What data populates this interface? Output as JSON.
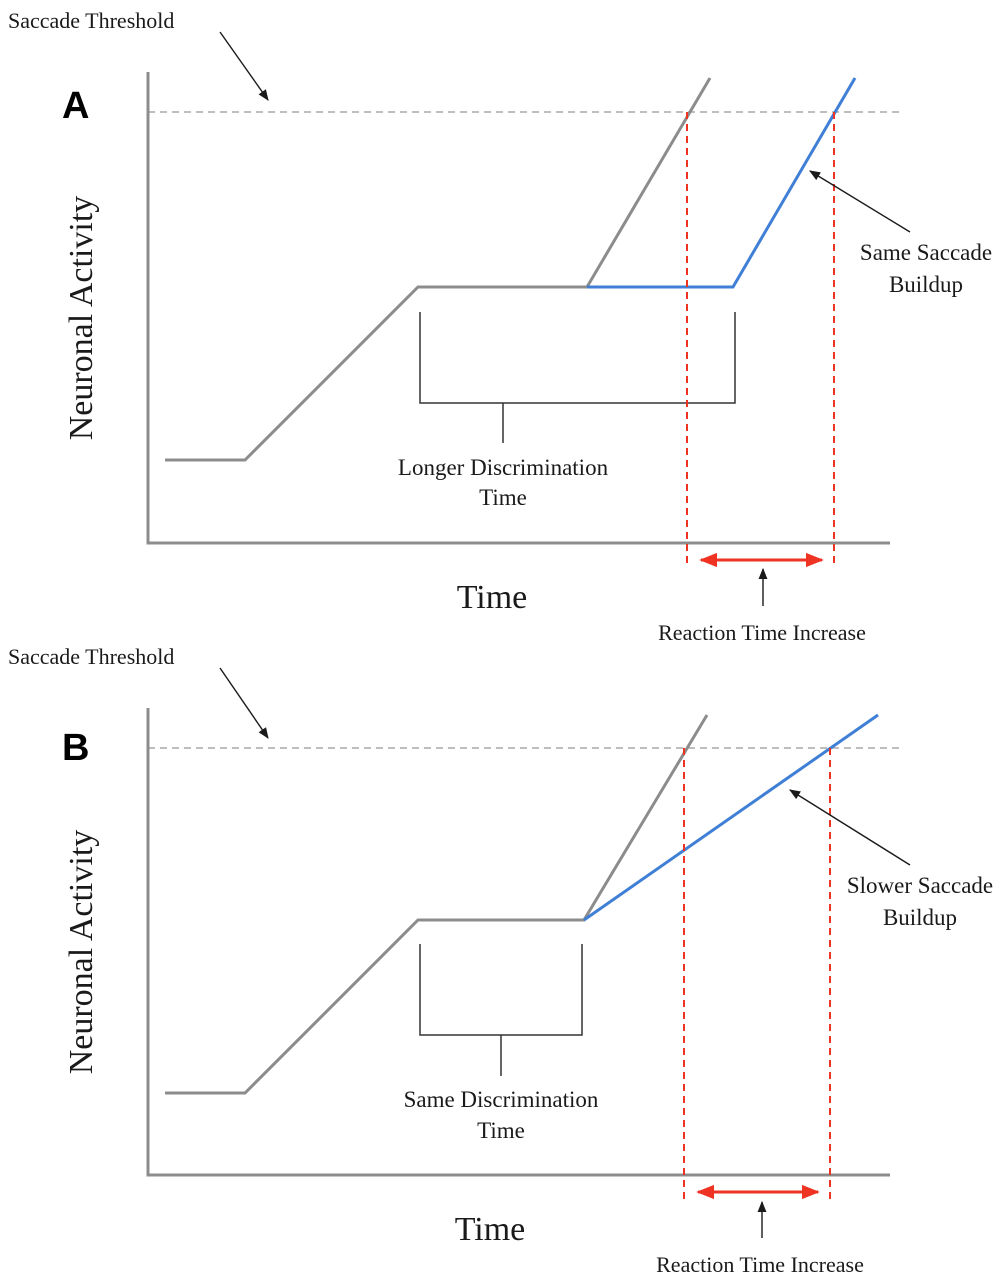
{
  "colors": {
    "axis": "#8c8c8c",
    "curve": "#8c8c8c",
    "slow_curve": "#3f7fd6",
    "threshold": "#a8a8a8",
    "reaction": "#ee3322",
    "annotation": "#1a1a1a"
  },
  "panels": [
    {
      "letter": "A",
      "threshold_label": "Saccade Threshold",
      "y_axis_label": "Neuronal Activity",
      "x_axis_label": "Time",
      "bracket_label_line1": "Longer Discrimination",
      "bracket_label_line2": "Time",
      "buildup_label_line1": "Same Saccade",
      "buildup_label_line2": "Buildup",
      "reaction_label": "Reaction Time Increase"
    },
    {
      "letter": "B",
      "threshold_label": "Saccade Threshold",
      "y_axis_label": "Neuronal Activity",
      "x_axis_label": "Time",
      "bracket_label_line1": "Same Discrimination",
      "bracket_label_line2": "Time",
      "buildup_label_line1": "Slower Saccade",
      "buildup_label_line2": "Buildup",
      "reaction_label": "Reaction Time Increase"
    }
  ]
}
